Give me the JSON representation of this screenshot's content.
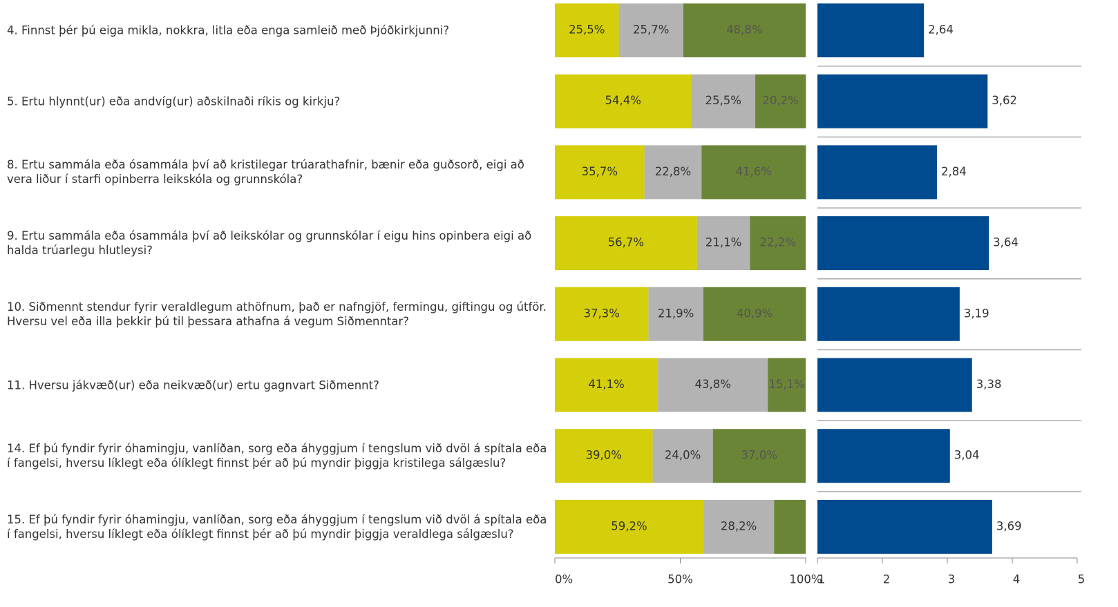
{
  "chart_data": [
    {
      "type": "stacked-bar",
      "categories": [
        "4. Finnst þér þú eiga mikla, nokkra, litla eða enga samleið með Þjóðkirkjunni?",
        "5. Ertu hlynnt(ur) eða andvíg(ur) aðskilnaði ríkis og kirkju?",
        "8. Ertu sammála eða ósammála því að kristilegar trúarathafnir, bænir eða guðsorð, eigi að vera liður í starfi opinberra leikskóla og grunnskóla?",
        "9. Ertu sammála eða ósammála því að leikskólar og grunnskólar í eigu hins opinbera eigi að halda trúarlegu hlutleysi?",
        "10. Siðmennt stendur fyrir veraldlegum athöfnum, það er nafngjöf, fermingu, giftingu og útför. Hversu vel eða illa þekkir þú til þessara athafna á vegum Siðmenntar?",
        "11. Hversu jákvæð(ur) eða neikvæð(ur) ertu gagnvart Siðmennt?",
        "14. Ef þú fyndir fyrir óhamingju, vanlíðan, sorg eða áhyggjum í tengslum við dvöl á spítala eða í fangelsi, hversu líklegt eða ólíklegt finnst þér að þú myndir þiggja kristilega sálgæslu?",
        "15. Ef þú fyndir fyrir óhamingju, vanlíðan, sorg eða áhyggjum í tengslum við dvöl á spítala eða í fangelsi, hversu líklegt eða ólíklegt finnst þér að þú myndir þiggja veraldlega sálgæslu?"
      ],
      "series": [
        {
          "color": "#d4cf0a",
          "values": [
            25.5,
            54.4,
            35.7,
            56.7,
            37.3,
            41.1,
            39.0,
            59.2
          ],
          "value_labels": [
            "25,5%",
            "54,4%",
            "35,7%",
            "56,7%",
            "37,3%",
            "41,1%",
            "39,0%",
            "59,2%"
          ]
        },
        {
          "color": "#b3b3b3",
          "values": [
            25.7,
            25.5,
            22.8,
            21.1,
            21.9,
            43.8,
            24.0,
            28.2
          ],
          "value_labels": [
            "25,7%",
            "25,5%",
            "22,8%",
            "21,1%",
            "21,9%",
            "43,8%",
            "24,0%",
            "28,2%"
          ]
        },
        {
          "color": "#6b8536",
          "values": [
            48.8,
            20.2,
            41.6,
            22.2,
            40.9,
            15.1,
            37.0,
            12.6
          ],
          "value_labels": [
            "48,8%",
            "20,2%",
            "41,6%",
            "22,2%",
            "40,9%",
            "15,1%",
            "37,0%",
            null
          ]
        }
      ],
      "xlim": [
        0,
        100
      ],
      "xticks": [
        {
          "value": 0,
          "label": "0%"
        },
        {
          "value": 50,
          "label": "50%"
        },
        {
          "value": 100,
          "label": "100%"
        }
      ]
    },
    {
      "type": "bar",
      "color": "#004a8f",
      "values": [
        2.64,
        3.62,
        2.84,
        3.64,
        3.19,
        3.38,
        3.04,
        3.69
      ],
      "value_labels": [
        "2,64",
        "3,62",
        "2,84",
        "3,64",
        "3,19",
        "3,38",
        "3,04",
        "3,69"
      ],
      "xlim": [
        1,
        5
      ],
      "xticks": [
        1,
        2,
        3,
        4,
        5
      ]
    }
  ]
}
